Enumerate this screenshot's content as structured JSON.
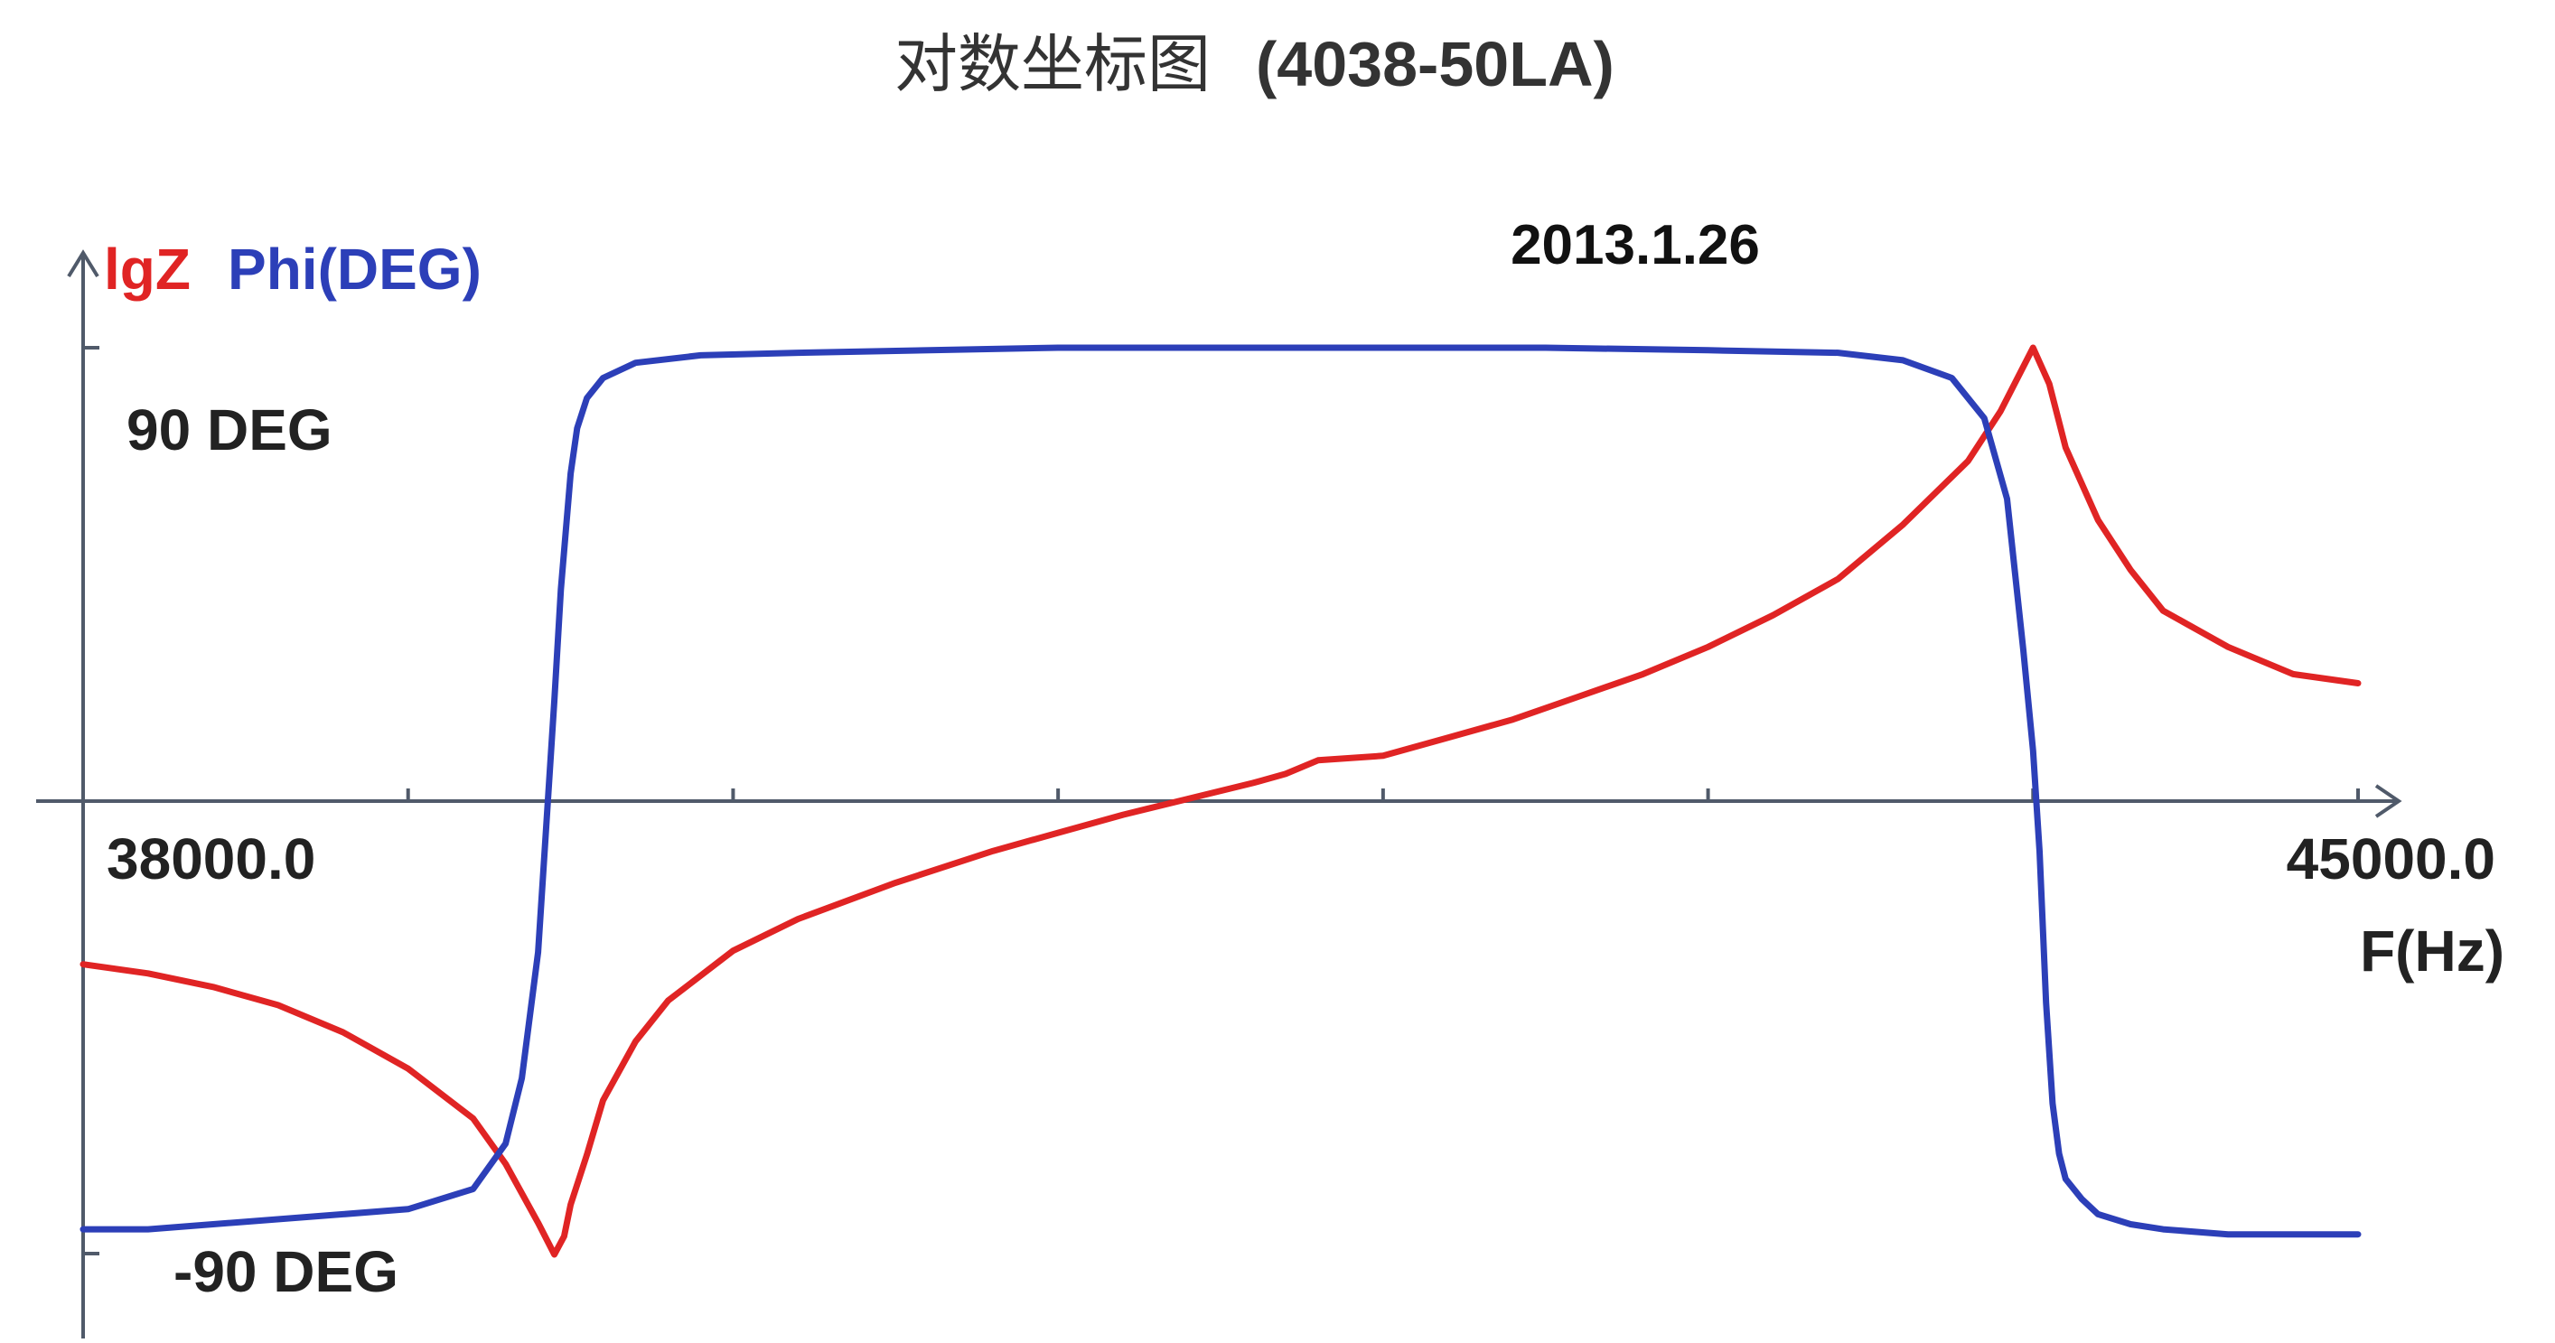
{
  "chart_data": {
    "type": "line",
    "title": "对数坐标图",
    "subtitle": "(4038-50LA)",
    "date": "2013.1.26",
    "y_axis_label_1": "lgZ",
    "y_axis_label_2": "Phi(DEG)",
    "x_axis_label": "F(Hz)",
    "x_min_label": "38000.0",
    "x_max_label": "45000.0",
    "phase_top_label": "90 DEG",
    "phase_bottom_label": "-90 DEG",
    "xlim": [
      38000,
      45000
    ],
    "phase_ylim": [
      -90,
      90
    ],
    "grid": false,
    "colors": {
      "lgZ": "#e02424",
      "phase": "#2c3fb8",
      "axis": "#505a6a"
    },
    "series": [
      {
        "name": "lgZ",
        "color": "#e02424",
        "x": [
          38000,
          38200,
          38400,
          38600,
          38800,
          39000,
          39200,
          39300,
          39400,
          39450,
          39480,
          39500,
          39550,
          39600,
          39700,
          39800,
          40000,
          40200,
          40500,
          40800,
          41000,
          41200,
          41400,
          41600,
          41700,
          41800,
          42000,
          42200,
          42400,
          42600,
          42800,
          43000,
          43200,
          43400,
          43600,
          43800,
          43900,
          43950,
          44000,
          44050,
          44100,
          44200,
          44300,
          44400,
          44600,
          44800,
          45000
        ],
        "norm": [
          -0.36,
          -0.38,
          -0.41,
          -0.45,
          -0.51,
          -0.59,
          -0.7,
          -0.8,
          -0.93,
          -1.0,
          -0.96,
          -0.89,
          -0.78,
          -0.66,
          -0.53,
          -0.44,
          -0.33,
          -0.26,
          -0.18,
          -0.11,
          -0.07,
          -0.03,
          0.005,
          0.04,
          0.06,
          0.09,
          0.1,
          0.14,
          0.18,
          0.23,
          0.28,
          0.34,
          0.41,
          0.49,
          0.61,
          0.75,
          0.86,
          0.93,
          1.0,
          0.92,
          0.78,
          0.62,
          0.51,
          0.42,
          0.34,
          0.28,
          0.26
        ]
      },
      {
        "name": "Phi(DEG)",
        "color": "#2c3fb8",
        "x": [
          38000,
          38200,
          38400,
          38800,
          39000,
          39200,
          39300,
          39350,
          39400,
          39430,
          39450,
          39470,
          39500,
          39520,
          39550,
          39600,
          39700,
          39900,
          40200,
          41000,
          42000,
          42500,
          43000,
          43400,
          43600,
          43750,
          43850,
          43920,
          43970,
          44000,
          44020,
          44040,
          44060,
          44080,
          44100,
          44150,
          44200,
          44300,
          44400,
          44600,
          45000
        ],
        "y": [
          -85,
          -85,
          -84,
          -82,
          -81,
          -77,
          -68,
          -55,
          -30,
          0,
          20,
          42,
          65,
          74,
          80,
          84,
          87,
          88.5,
          89,
          90,
          90,
          90,
          89.5,
          89,
          87.5,
          84,
          76,
          60,
          30,
          10,
          -10,
          -40,
          -60,
          -70,
          -75,
          -79,
          -82,
          -84,
          -85,
          -86,
          -86
        ]
      }
    ]
  }
}
